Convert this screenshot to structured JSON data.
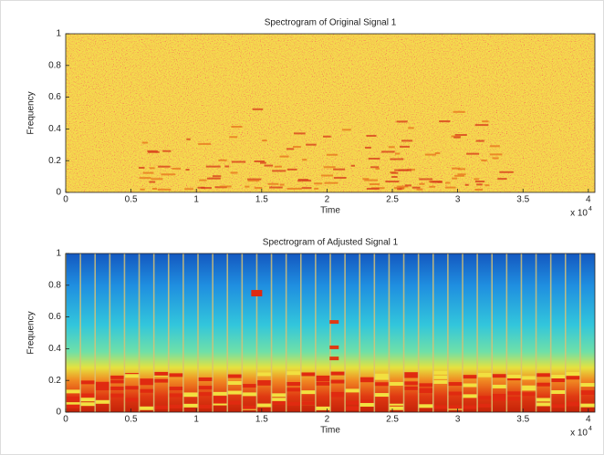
{
  "chart_data": [
    {
      "type": "spectrogram",
      "title": "Spectrogram of Original Signal 1",
      "x_label": "Time",
      "y_label": "Frequency",
      "x_scale_base": "x 10",
      "x_scale_exponent": "4",
      "xlim": [
        0,
        4.05
      ],
      "xticks": [
        0,
        0.5,
        1,
        1.5,
        2,
        2.5,
        3,
        3.5,
        4
      ],
      "ylim": [
        0,
        1
      ],
      "yticks": [
        0,
        0.2,
        0.4,
        0.6,
        0.8,
        1
      ],
      "colormap": "noisy"
    },
    {
      "type": "spectrogram",
      "title": "Spectrogram of Adjusted Signal 1",
      "x_label": "Time",
      "y_label": "Frequency",
      "x_scale_base": "x 10",
      "x_scale_exponent": "4",
      "xlim": [
        0,
        4.05
      ],
      "xticks": [
        0,
        0.5,
        1,
        1.5,
        2,
        2.5,
        3,
        3.5,
        4
      ],
      "ylim": [
        0,
        1
      ],
      "yticks": [
        0,
        0.2,
        0.4,
        0.6,
        0.8,
        1
      ],
      "colormap": "jet"
    }
  ]
}
